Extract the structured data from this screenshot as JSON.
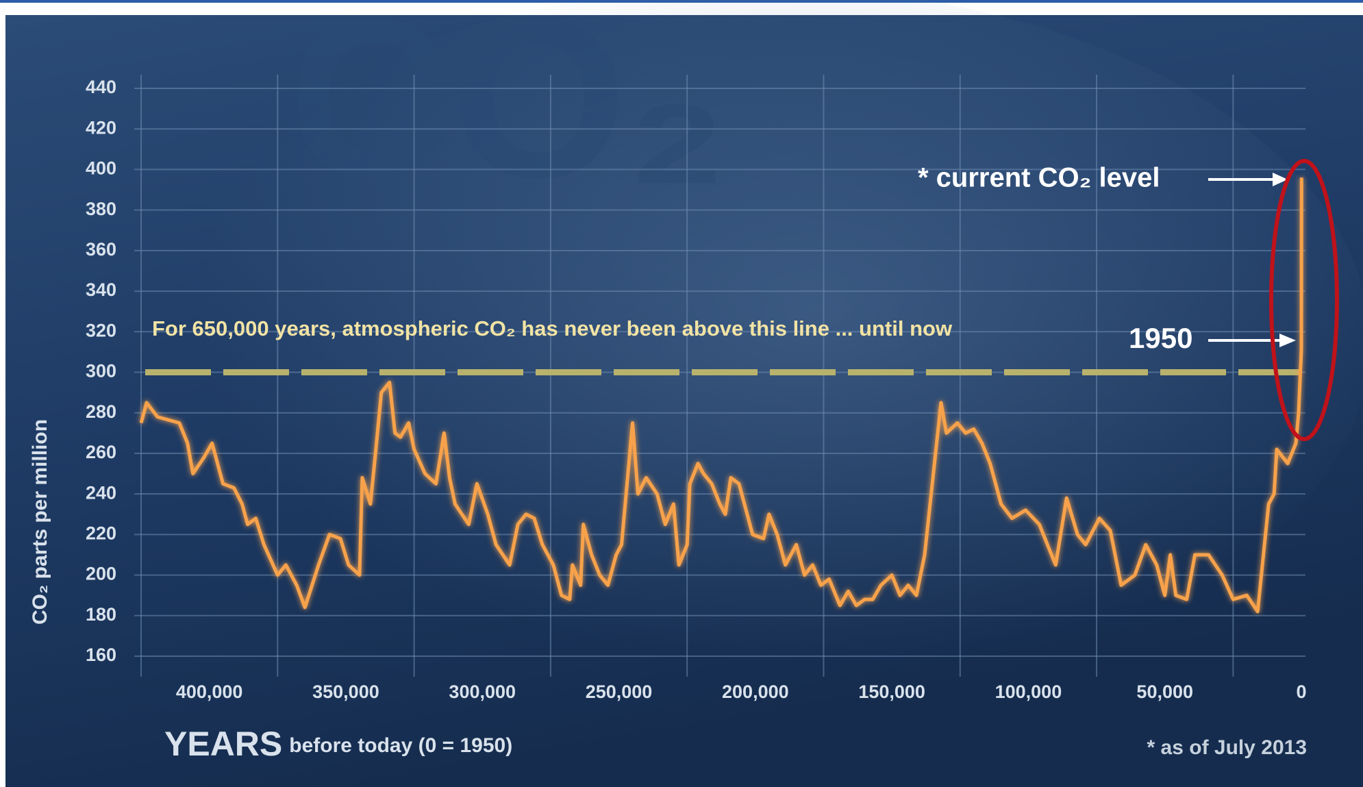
{
  "chart_data": {
    "type": "line",
    "watermark": "CO₂",
    "y_label": "CO₂ parts per million",
    "x_label": "YEARS",
    "x_label_sub": "before today (0 = 1950)",
    "footnote": "* as of July 2013",
    "current_label": "* current CO₂ level",
    "marker_1950_label": "1950",
    "threshold": {
      "value": 300,
      "label": "For 650,000 years, atmospheric CO₂ has never been above this line ... until now"
    },
    "ylim": [
      160,
      440
    ],
    "yticks": [
      160,
      180,
      200,
      220,
      240,
      260,
      280,
      300,
      320,
      340,
      360,
      380,
      400,
      420,
      440
    ],
    "xlim": [
      425000,
      -1500
    ],
    "xticks": [
      {
        "value": 400000,
        "label": "400,000"
      },
      {
        "value": 350000,
        "label": "350,000"
      },
      {
        "value": 300000,
        "label": "300,000"
      },
      {
        "value": 250000,
        "label": "250,000"
      },
      {
        "value": 200000,
        "label": "200,000"
      },
      {
        "value": 150000,
        "label": "150,000"
      },
      {
        "value": 100000,
        "label": "100,000"
      },
      {
        "value": 50000,
        "label": "50,000"
      },
      0
    ],
    "x_grid_lines": [
      425000,
      375000,
      325000,
      275000,
      225000,
      175000,
      125000,
      75000,
      25000
    ],
    "grid": true,
    "series": [
      {
        "name": "CO₂",
        "color": "#f7a24c",
        "x": [
          425000,
          423000,
          419000,
          411000,
          408000,
          406000,
          402000,
          399000,
          395000,
          391000,
          388000,
          386000,
          383000,
          380000,
          375000,
          372000,
          368000,
          365000,
          360000,
          356000,
          352000,
          349000,
          345000,
          344000,
          341000,
          339000,
          337000,
          334000,
          332000,
          330000,
          327000,
          325000,
          321000,
          317000,
          314000,
          312000,
          310000,
          305000,
          302000,
          298000,
          295000,
          290000,
          287000,
          284000,
          281000,
          278000,
          274000,
          271000,
          268000,
          267000,
          264000,
          263000,
          260000,
          257000,
          254000,
          251000,
          249000,
          247000,
          245000,
          243000,
          240000,
          236000,
          233000,
          230000,
          228000,
          225000,
          224000,
          221000,
          219000,
          216000,
          213000,
          211000,
          209000,
          206000,
          204000,
          201000,
          197000,
          195000,
          192000,
          189000,
          185000,
          182000,
          179000,
          176000,
          173000,
          169000,
          166000,
          163000,
          160000,
          157000,
          154000,
          150000,
          147000,
          144000,
          141000,
          138000,
          134000,
          132000,
          130000,
          126000,
          123000,
          120000,
          117000,
          114000,
          110000,
          106000,
          101000,
          96000,
          93000,
          90000,
          86000,
          82000,
          79000,
          74000,
          70000,
          66000,
          61000,
          57000,
          53000,
          50000,
          48000,
          46000,
          42000,
          39000,
          34000,
          29000,
          25000,
          20000,
          16000,
          12000,
          10000,
          9000,
          5000,
          2000,
          1000,
          0,
          -63
        ],
        "values": [
          275,
          285,
          278,
          275,
          265,
          250,
          258,
          265,
          245,
          243,
          235,
          225,
          228,
          215,
          200,
          205,
          195,
          184,
          205,
          220,
          218,
          205,
          200,
          248,
          235,
          262,
          290,
          295,
          270,
          268,
          275,
          262,
          250,
          245,
          270,
          248,
          235,
          225,
          245,
          230,
          215,
          205,
          225,
          230,
          228,
          215,
          205,
          190,
          188,
          205,
          195,
          225,
          210,
          200,
          195,
          210,
          215,
          245,
          275,
          240,
          248,
          240,
          225,
          235,
          205,
          215,
          245,
          255,
          250,
          245,
          235,
          230,
          248,
          245,
          235,
          220,
          218,
          230,
          220,
          205,
          215,
          200,
          205,
          195,
          198,
          185,
          192,
          185,
          188,
          188,
          195,
          200,
          190,
          195,
          190,
          210,
          260,
          285,
          270,
          275,
          270,
          272,
          265,
          255,
          235,
          228,
          232,
          225,
          215,
          205,
          238,
          220,
          215,
          228,
          222,
          195,
          200,
          215,
          205,
          190,
          210,
          190,
          188,
          210,
          210,
          200,
          188,
          190,
          182,
          235,
          240,
          262,
          255,
          265,
          280,
          311,
          396
        ]
      }
    ]
  }
}
